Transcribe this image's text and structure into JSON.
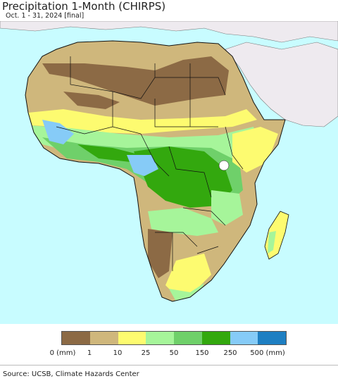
{
  "header": {
    "title": "Precipitation 1-Month (CHIRPS)",
    "subtitle": "Oct. 1 - 31, 2024 [final]"
  },
  "legend": {
    "colors": [
      "#8c6a45",
      "#cfb77c",
      "#fdfb70",
      "#a6f59a",
      "#6fd06a",
      "#33a80e",
      "#86cbf7",
      "#1e7fc2"
    ],
    "ticks": [
      "0 (mm)",
      "1",
      "10",
      "25",
      "50",
      "150",
      "250",
      "500 (mm)"
    ]
  },
  "map": {
    "region": "Africa",
    "ocean_color": "#c8fcff",
    "outside_color": "#eeeaef"
  },
  "footer": {
    "source": "Source: UCSB, Climate Hazards Center"
  }
}
